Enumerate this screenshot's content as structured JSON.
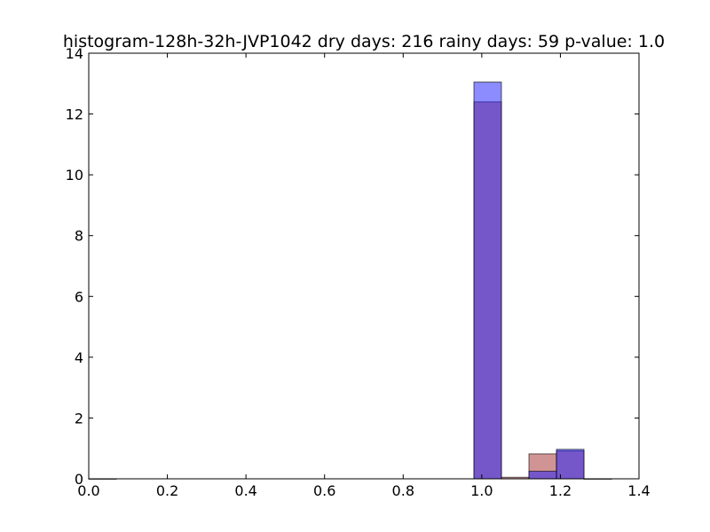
{
  "chart_data": {
    "type": "bar",
    "title": "histogram-128h-32h-JVP1042 dry days: 216 rainy days: 59 p-value: 1.0",
    "xlabel": "",
    "ylabel": "",
    "xlim": [
      0.0,
      1.4
    ],
    "ylim": [
      0,
      14
    ],
    "xticks": [
      0.0,
      0.2,
      0.4,
      0.6,
      0.8,
      1.0,
      1.2,
      1.4
    ],
    "xtick_labels": [
      "0.0",
      "0.2",
      "0.4",
      "0.6",
      "0.8",
      "1.0",
      "1.2",
      "1.4"
    ],
    "yticks": [
      0,
      2,
      4,
      6,
      8,
      10,
      12,
      14
    ],
    "ytick_labels": [
      "0",
      "2",
      "4",
      "6",
      "8",
      "10",
      "12",
      "14"
    ],
    "grid": false,
    "legend": "none",
    "series": [
      {
        "color": "#b24c4c",
        "alpha": 0.6,
        "bins": [
          {
            "x0": 0.0,
            "x1": 0.07,
            "value": 0.0
          },
          {
            "x0": 0.98,
            "x1": 1.05,
            "value": 12.4
          },
          {
            "x0": 1.05,
            "x1": 1.12,
            "value": 0.05
          },
          {
            "x0": 1.12,
            "x1": 1.19,
            "value": 0.82
          },
          {
            "x0": 1.19,
            "x1": 1.26,
            "value": 0.92
          },
          {
            "x0": 1.26,
            "x1": 1.33,
            "value": 0.0
          }
        ]
      },
      {
        "color": "#1a1aff",
        "alpha": 0.5,
        "bins": [
          {
            "x0": 0.98,
            "x1": 1.05,
            "value": 13.05
          },
          {
            "x0": 1.12,
            "x1": 1.19,
            "value": 0.25
          },
          {
            "x0": 1.19,
            "x1": 1.26,
            "value": 0.97
          }
        ]
      }
    ]
  }
}
